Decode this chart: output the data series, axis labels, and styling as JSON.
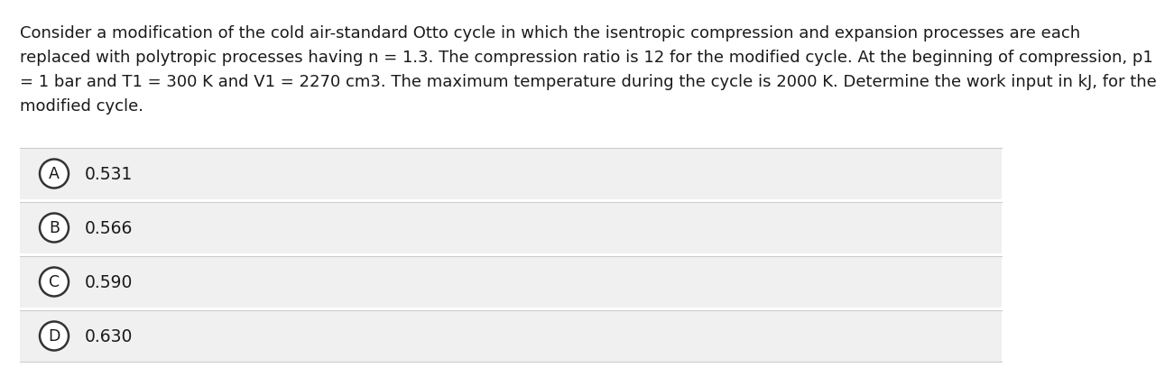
{
  "question_text_lines": [
    "Consider a modification of the cold air-standard Otto cycle in which the isentropic compression and expansion processes are each",
    "replaced with polytropic processes having n = 1.3. The compression ratio is 12 for the modified cycle. At the beginning of compression, p1",
    "= 1 bar and T1 = 300 K and V1 = 2270 cm3. The maximum temperature during the cycle is 2000 K. Determine the work input in kJ, for the",
    "modified cycle."
  ],
  "options": [
    {
      "label": "A",
      "text": "0.531"
    },
    {
      "label": "B",
      "text": "0.566"
    },
    {
      "label": "C",
      "text": "0.590"
    },
    {
      "label": "D",
      "text": "0.630"
    }
  ],
  "correct_answer": "B",
  "bg_color": "#ffffff",
  "option_bg_color": "#f0f0f0",
  "text_color": "#1a1a1a",
  "circle_edge_color": "#333333",
  "circle_fill_color": "#ffffff",
  "font_size_question": 13.0,
  "font_size_option": 13.5,
  "font_size_label": 12.5
}
